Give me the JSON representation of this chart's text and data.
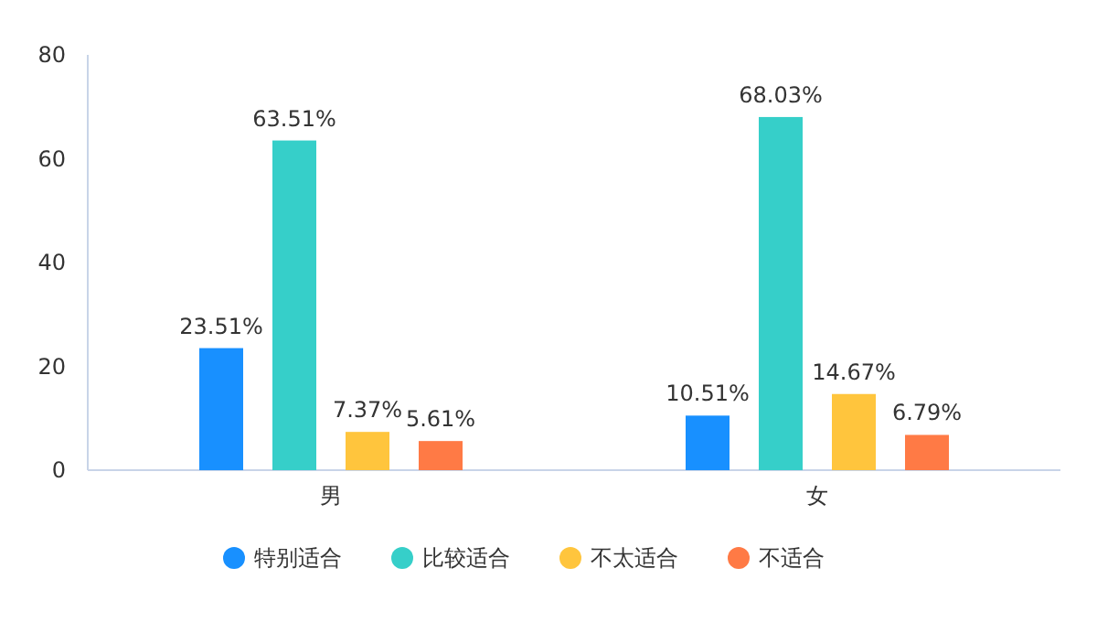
{
  "chart_data": {
    "type": "bar",
    "categories": [
      "男",
      "女"
    ],
    "series": [
      {
        "name": "特别适合",
        "color": "#1890ff",
        "values": [
          23.51,
          10.51
        ],
        "value_labels": [
          "23.51%",
          "10.51%"
        ]
      },
      {
        "name": "比较适合",
        "color": "#36cfc9",
        "values": [
          63.51,
          68.03
        ],
        "value_labels": [
          "63.51%",
          "68.03%"
        ]
      },
      {
        "name": "不太适合",
        "color": "#ffc53d",
        "values": [
          7.37,
          14.67
        ],
        "value_labels": [
          "7.37%",
          "14.67%"
        ]
      },
      {
        "name": "不适合",
        "color": "#ff7a45",
        "values": [
          5.61,
          6.79
        ],
        "value_labels": [
          "5.61%",
          "6.79%"
        ]
      }
    ],
    "ylim": [
      0,
      80
    ],
    "yticks": [
      0,
      20,
      40,
      60,
      80
    ],
    "grid": false,
    "legend": "bottom"
  }
}
